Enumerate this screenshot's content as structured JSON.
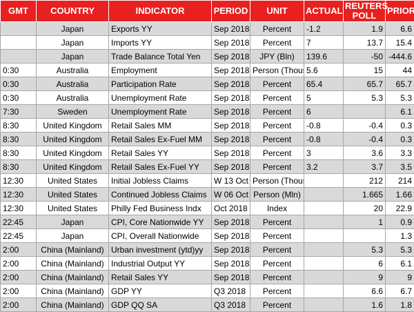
{
  "header": {
    "columns": [
      "GMT",
      "COUNTRY",
      "INDICATOR",
      "PERIOD",
      "UNIT",
      "ACTUAL",
      "REUTERS POLL",
      "PRIOR"
    ]
  },
  "table": {
    "rows": [
      [
        "",
        "Japan",
        "Exports YY",
        "Sep 2018",
        "Percent",
        "-1.2",
        "1.9",
        "6.6"
      ],
      [
        "",
        "Japan",
        "Imports YY",
        "Sep 2018",
        "Percent",
        "7",
        "13.7",
        "15.4"
      ],
      [
        "",
        "Japan",
        "Trade Balance Total Yen",
        "Sep 2018",
        "JPY (Bln)",
        "139.6",
        "-50",
        "-444.6"
      ],
      [
        "0:30",
        "Australia",
        "Employment",
        "Sep 2018",
        "Person (Thous)",
        "5.6",
        "15",
        "44"
      ],
      [
        "0:30",
        "Australia",
        "Participation Rate",
        "Sep 2018",
        "Percent",
        "65.4",
        "65.7",
        "65.7"
      ],
      [
        "0:30",
        "Australia",
        "Unemployment Rate",
        "Sep 2018",
        "Percent",
        "5",
        "5.3",
        "5.3"
      ],
      [
        "7:30",
        "Sweden",
        "Unemployment Rate",
        "Sep 2018",
        "Percent",
        "6",
        null,
        "6.1"
      ],
      [
        "8:30",
        "United Kingdom",
        "Retail Sales MM",
        "Sep 2018",
        "Percent",
        "-0.8",
        "-0.4",
        "0.3"
      ],
      [
        "8:30",
        "United Kingdom",
        "Retail Sales Ex-Fuel MM",
        "Sep 2018",
        "Percent",
        "-0.8",
        "-0.4",
        "0.3"
      ],
      [
        "8:30",
        "United Kingdom",
        "Retail Sales YY",
        "Sep 2018",
        "Percent",
        "3",
        "3.6",
        "3.3"
      ],
      [
        "8:30",
        "United Kingdom",
        "Retail Sales Ex-Fuel YY",
        "Sep 2018",
        "Percent",
        "3.2",
        "3.7",
        "3.5"
      ],
      [
        "12:30",
        "United States",
        "Initial Jobless Claims",
        "W 13 Oct",
        "Person (Thous)",
        null,
        "212",
        "214"
      ],
      [
        "12:30",
        "United States",
        "Continued Jobless Claims",
        "W 06 Oct",
        "Person (Mln)",
        null,
        "1.665",
        "1.66"
      ],
      [
        "12:30",
        "United States",
        "Philly Fed Business Indx",
        "Oct 2018",
        "Index",
        null,
        "20",
        "22.9"
      ],
      [
        "22:45",
        "Japan",
        "CPI, Core Nationwide YY",
        "Sep 2018",
        "Percent",
        null,
        "1",
        "0.9"
      ],
      [
        "22:45",
        "Japan",
        "CPI, Overall Nationwide",
        "Sep 2018",
        "Percent",
        null,
        null,
        "1.3"
      ],
      [
        "2:00",
        "China (Mainland)",
        "Urban investment (ytd)yy",
        "Sep 2018",
        "Percent",
        null,
        "5.3",
        "5.3"
      ],
      [
        "2:00",
        "China (Mainland)",
        "Industrial Output YY",
        "Sep 2018",
        "Percent",
        null,
        "6",
        "6.1"
      ],
      [
        "2:00",
        "China (Mainland)",
        "Retail Sales YY",
        "Sep 2018",
        "Percent",
        null,
        "9",
        "9"
      ],
      [
        "2:00",
        "China (Mainland)",
        "GDP YY",
        "Q3 2018",
        "Percent",
        null,
        "6.6",
        "6.7"
      ],
      [
        "2:00",
        "China (Mainland)",
        "GDP QQ SA",
        "Q3 2018",
        "Percent",
        null,
        "1.6",
        "1.8"
      ]
    ]
  }
}
